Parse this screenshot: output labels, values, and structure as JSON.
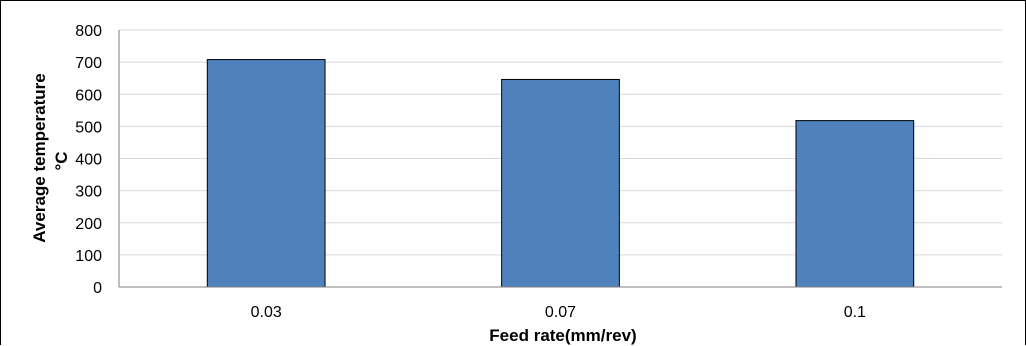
{
  "chart_data": {
    "type": "bar",
    "title": "",
    "xlabel": "Feed rate(mm/rev)",
    "ylabel_line1": "Average temperature",
    "ylabel_line2": "°C",
    "categories": [
      "0.03",
      "0.07",
      "0.1"
    ],
    "series": [
      {
        "values": [
          708,
          646,
          518
        ]
      }
    ],
    "ylim": [
      0,
      800
    ],
    "yticks": [
      0,
      100,
      200,
      300,
      400,
      500,
      600,
      700,
      800
    ],
    "grid": true,
    "legend": "none",
    "colors": {
      "bar_fill": "#4f81bd",
      "bar_stroke": "#000000",
      "grid": "#d9d9d9",
      "axis": "#7f7f7f"
    }
  }
}
